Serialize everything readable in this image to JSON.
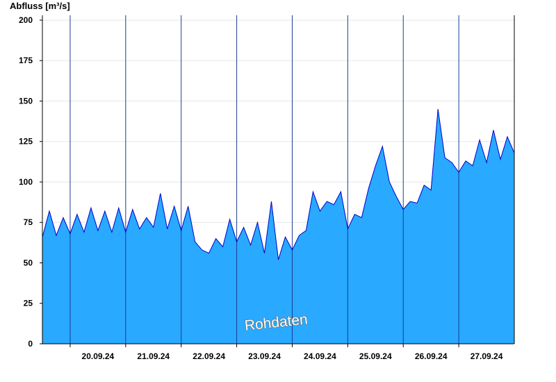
{
  "chart_data": {
    "type": "area",
    "title": "",
    "ylabel": "Abfluss [m³/s]",
    "xlabel": "",
    "ylim": [
      0,
      203
    ],
    "yticks": [
      0,
      25,
      50,
      75,
      100,
      125,
      150,
      175,
      200
    ],
    "grid": "horizontal",
    "watermark": "Rohdaten",
    "x_start": "19.09.24 12:00",
    "x_end": "27.09.24 24:00",
    "x_ticks": [
      "20.09.24",
      "21.09.24",
      "22.09.24",
      "23.09.24",
      "24.09.24",
      "25.09.24",
      "26.09.24",
      "27.09.24"
    ],
    "colors": {
      "fill": "#29a9ff",
      "line": "#0000cc",
      "day_separator": "#1a3d8f",
      "axis": "#000000",
      "grid": "#e6e6e6"
    },
    "series": [
      {
        "x": [
          "19.09.24 12:00",
          "19.09.24 15:00",
          "19.09.24 18:00",
          "19.09.24 21:00",
          "20.09.24 00:00",
          "20.09.24 03:00",
          "20.09.24 06:00",
          "20.09.24 09:00",
          "20.09.24 12:00",
          "20.09.24 15:00",
          "20.09.24 18:00",
          "20.09.24 21:00",
          "21.09.24 00:00",
          "21.09.24 03:00",
          "21.09.24 06:00",
          "21.09.24 09:00",
          "21.09.24 12:00",
          "21.09.24 15:00",
          "21.09.24 18:00",
          "21.09.24 21:00",
          "22.09.24 00:00",
          "22.09.24 03:00",
          "22.09.24 06:00",
          "22.09.24 09:00",
          "22.09.24 12:00",
          "22.09.24 15:00",
          "22.09.24 18:00",
          "22.09.24 21:00",
          "23.09.24 00:00",
          "23.09.24 03:00",
          "23.09.24 06:00",
          "23.09.24 09:00",
          "23.09.24 12:00",
          "23.09.24 15:00",
          "23.09.24 18:00",
          "23.09.24 21:00",
          "24.09.24 00:00",
          "24.09.24 03:00",
          "24.09.24 06:00",
          "24.09.24 09:00",
          "24.09.24 12:00",
          "24.09.24 15:00",
          "24.09.24 18:00",
          "24.09.24 21:00",
          "25.09.24 00:00",
          "25.09.24 03:00",
          "25.09.24 06:00",
          "25.09.24 09:00",
          "25.09.24 12:00",
          "25.09.24 15:00",
          "25.09.24 18:00",
          "25.09.24 21:00",
          "26.09.24 00:00",
          "26.09.24 03:00",
          "26.09.24 06:00",
          "26.09.24 09:00",
          "26.09.24 12:00",
          "26.09.24 15:00",
          "26.09.24 18:00",
          "26.09.24 21:00",
          "27.09.24 00:00",
          "27.09.24 03:00",
          "27.09.24 06:00",
          "27.09.24 09:00",
          "27.09.24 12:00",
          "27.09.24 15:00",
          "27.09.24 18:00",
          "27.09.24 21:00",
          "27.09.24 24:00"
        ],
        "y": [
          66,
          82,
          67,
          78,
          68,
          80,
          69,
          84,
          70,
          82,
          69,
          84,
          69,
          83,
          71,
          78,
          72,
          93,
          71,
          85,
          70,
          85,
          63,
          58,
          56,
          65,
          60,
          77,
          63,
          72,
          61,
          75,
          56,
          88,
          52,
          66,
          58,
          67,
          70,
          94,
          82,
          88,
          86,
          94,
          71,
          80,
          78,
          96,
          110,
          122,
          100,
          91,
          83,
          88,
          87,
          98,
          95,
          145,
          115,
          112,
          106,
          113,
          110,
          126,
          112,
          132,
          114,
          128,
          118
        ]
      }
    ]
  }
}
